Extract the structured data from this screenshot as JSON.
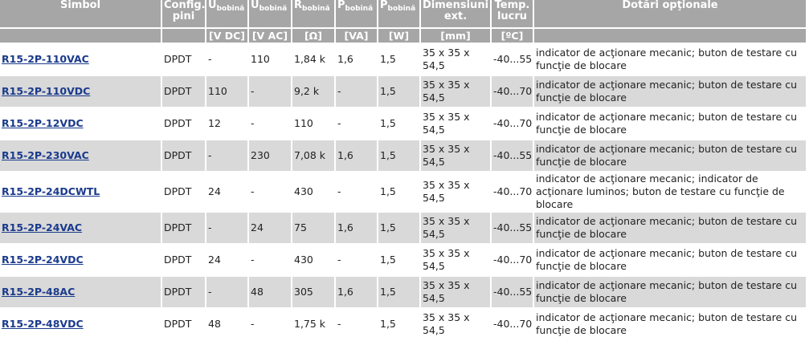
{
  "headers": {
    "simbol": "Simbol",
    "config": "Config. pini",
    "u_dc": {
      "base": "U",
      "sub": "bobină"
    },
    "u_ac": {
      "base": "U",
      "sub": "bobină"
    },
    "r": {
      "base": "R",
      "sub": "bobină"
    },
    "p_va": {
      "base": "P",
      "sub": "bobină"
    },
    "p_w": {
      "base": "P",
      "sub": "bobină"
    },
    "dim": "Dimensiuni ext.",
    "temp": "Temp. lucru",
    "dotari": "Dotări opţionale"
  },
  "units": {
    "u_dc": "[V DC]",
    "u_ac": "[V AC]",
    "r": "[Ω]",
    "p_va": "[VA]",
    "p_w": "[W]",
    "dim": "[mm]",
    "temp": "[ºC]"
  },
  "rows": [
    {
      "simbol": "R15-2P-110VAC",
      "config": "DPDT",
      "udc": "-",
      "uac": "110",
      "r": "1,84 k",
      "pva": "1,6",
      "pw": "1,5",
      "dim": "35 x 35 x 54,5",
      "temp": "-40...55",
      "dotari": "indicator de acţionare mecanic; buton de testare cu funcţie de blocare"
    },
    {
      "simbol": "R15-2P-110VDC",
      "config": "DPDT",
      "udc": "110",
      "uac": "-",
      "r": "9,2 k",
      "pva": "-",
      "pw": "1,5",
      "dim": "35 x 35 x 54,5",
      "temp": "-40...70",
      "dotari": "indicator de acţionare mecanic; buton de testare cu funcţie de blocare"
    },
    {
      "simbol": "R15-2P-12VDC",
      "config": "DPDT",
      "udc": "12",
      "uac": "-",
      "r": "110",
      "pva": "-",
      "pw": "1,5",
      "dim": "35 x 35 x 54,5",
      "temp": "-40...70",
      "dotari": "indicator de acţionare mecanic; buton de testare cu funcţie de blocare"
    },
    {
      "simbol": "R15-2P-230VAC",
      "config": "DPDT",
      "udc": "-",
      "uac": "230",
      "r": "7,08 k",
      "pva": "1,6",
      "pw": "1,5",
      "dim": "35 x 35 x 54,5",
      "temp": "-40...55",
      "dotari": "indicator de acţionare mecanic; buton de testare cu funcţie de blocare"
    },
    {
      "simbol": "R15-2P-24DCWTL",
      "config": "DPDT",
      "udc": "24",
      "uac": "-",
      "r": "430",
      "pva": "-",
      "pw": "1,5",
      "dim": "35 x 35 x 54,5",
      "temp": "-40...70",
      "dotari": "indicator de acţionare mecanic; indicator de acţionare luminos; buton de testare cu funcţie de blocare"
    },
    {
      "simbol": "R15-2P-24VAC",
      "config": "DPDT",
      "udc": "-",
      "uac": "24",
      "r": "75",
      "pva": "1,6",
      "pw": "1,5",
      "dim": "35 x 35 x 54,5",
      "temp": "-40...55",
      "dotari": "indicator de acţionare mecanic; buton de testare cu funcţie de blocare"
    },
    {
      "simbol": "R15-2P-24VDC",
      "config": "DPDT",
      "udc": "24",
      "uac": "-",
      "r": "430",
      "pva": "-",
      "pw": "1,5",
      "dim": "35 x 35 x 54,5",
      "temp": "-40...70",
      "dotari": "indicator de acţionare mecanic; buton de testare cu funcţie de blocare"
    },
    {
      "simbol": "R15-2P-48AC",
      "config": "DPDT",
      "udc": "-",
      "uac": "48",
      "r": "305",
      "pva": "1,6",
      "pw": "1,5",
      "dim": "35 x 35 x 54,5",
      "temp": "-40...55",
      "dotari": "indicator de acţionare mecanic; buton de testare cu funcţie de blocare"
    },
    {
      "simbol": "R15-2P-48VDC",
      "config": "DPDT",
      "udc": "48",
      "uac": "-",
      "r": "1,75 k",
      "pva": "-",
      "pw": "1,5",
      "dim": "35 x 35 x 54,5",
      "temp": "-40...70",
      "dotari": "indicator de acţionare mecanic; buton de testare cu funcţie de blocare"
    }
  ]
}
